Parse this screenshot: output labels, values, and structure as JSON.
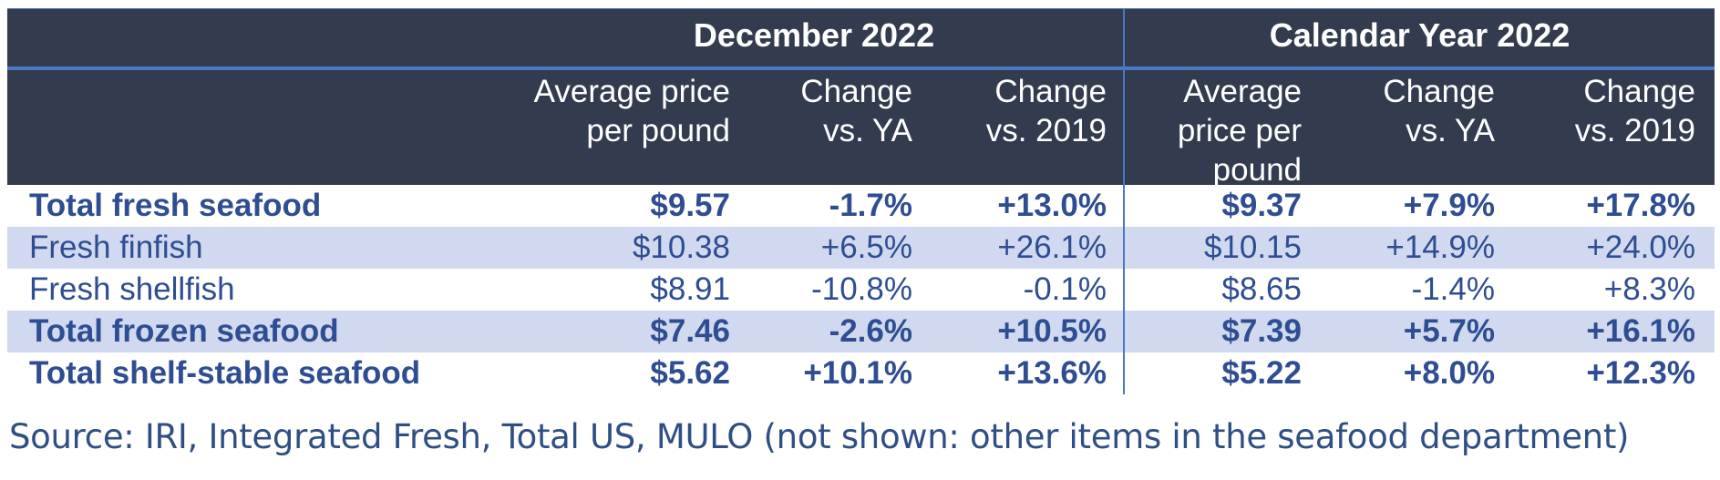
{
  "groups": {
    "december": "December 2022",
    "calendar": "Calendar Year 2022"
  },
  "columns": {
    "dec_price": [
      "Average price",
      "per pound"
    ],
    "dec_ya": [
      "Change",
      "vs. YA"
    ],
    "dec_2019": [
      "Change",
      "vs. 2019"
    ],
    "cy_price": [
      "Average",
      "price per",
      "pound"
    ],
    "cy_ya": [
      "Change",
      "vs. YA"
    ],
    "cy_2019": [
      "Change",
      "vs. 2019"
    ]
  },
  "rows": [
    {
      "label": "Total fresh seafood",
      "bold": true,
      "shaded": false,
      "values": [
        "$9.57",
        "-1.7%",
        "+13.0%",
        "$9.37",
        "+7.9%",
        "+17.8%"
      ]
    },
    {
      "label": "Fresh finfish",
      "bold": false,
      "shaded": true,
      "values": [
        "$10.38",
        "+6.5%",
        "+26.1%",
        "$10.15",
        "+14.9%",
        "+24.0%"
      ]
    },
    {
      "label": "Fresh shellfish",
      "bold": false,
      "shaded": false,
      "values": [
        "$8.91",
        "-10.8%",
        "-0.1%",
        "$8.65",
        "-1.4%",
        "+8.3%"
      ]
    },
    {
      "label": "Total frozen seafood",
      "bold": true,
      "shaded": true,
      "values": [
        "$7.46",
        "-2.6%",
        "+10.5%",
        "$7.39",
        "+5.7%",
        "+16.1%"
      ]
    },
    {
      "label": "Total shelf-stable seafood",
      "bold": true,
      "shaded": false,
      "values": [
        "$5.62",
        "+10.1%",
        "+13.6%",
        "$5.22",
        "+8.0%",
        "+12.3%"
      ]
    }
  ],
  "source": "Source: IRI, Integrated Fresh, Total US, MULO (not shown: other items in the seafood department)",
  "colors": {
    "header_bg": "#323c4e",
    "accent_rule": "#4a78c2",
    "row_shade": "#d0d9ef",
    "text": "#2e4d92"
  }
}
